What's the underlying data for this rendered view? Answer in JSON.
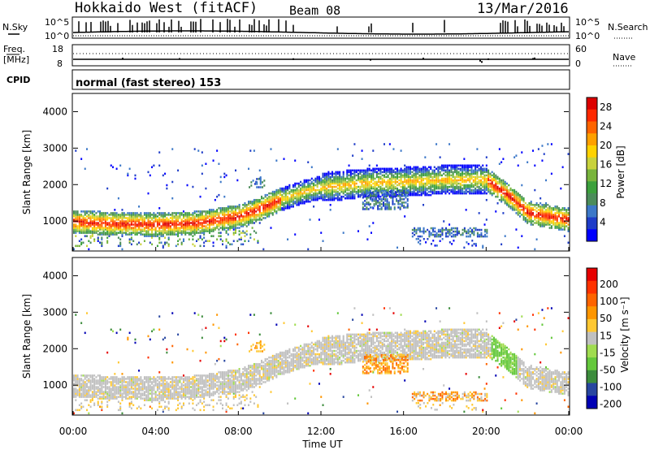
{
  "header": {
    "radar": "Hokkaido West (fitACF)",
    "beam": "Beam 08",
    "date": "13/Mar/2016"
  },
  "top_panels": {
    "nsky_label": "N.Sky",
    "nsearch_label": "N.Search",
    "noise_ticks": [
      "10^5",
      "10^0"
    ],
    "freq_label": "Freq.",
    "freq_unit": "[MHz]",
    "freq_ticks": [
      "18",
      "8"
    ],
    "nave_label": "Nave",
    "nave_ticks": [
      "60",
      "0"
    ],
    "cpid_label": "CPID",
    "cpid_text": "normal (fast stereo) 153"
  },
  "colors": {
    "power_scale": [
      "#0000ff",
      "#1e3cc8",
      "#3c78c8",
      "#4b8c5a",
      "#3ca03c",
      "#78b43c",
      "#c8d23c",
      "#ffd200",
      "#ffa000",
      "#ff6400",
      "#ff2800",
      "#dc0000"
    ],
    "velocity_scale": [
      "#0000b4",
      "#2846a0",
      "#3c8c3c",
      "#64c83c",
      "#a0dc50",
      "#c0c0c0",
      "#ffc832",
      "#ff9600",
      "#ff6400",
      "#ff3200",
      "#e60000"
    ]
  },
  "chart_data": [
    {
      "type": "heatmap",
      "title": "Power",
      "xlabel": "Time UT",
      "ylabel": "Slant Range [km]",
      "x_ticks": [
        "00:00",
        "04:00",
        "08:00",
        "12:00",
        "16:00",
        "20:00",
        "00:00"
      ],
      "xlim_hours": [
        0,
        24
      ],
      "y_ticks": [
        1000,
        2000,
        3000,
        4000
      ],
      "ylim": [
        180,
        4500
      ],
      "colorbar_label": "Power [dB]",
      "colorbar_ticks": [
        4,
        8,
        12,
        16,
        20,
        24,
        28
      ],
      "echo_band": {
        "time_hours": [
          0,
          2,
          4,
          6,
          8,
          9,
          10,
          11,
          12,
          13,
          14,
          16,
          18,
          19,
          20,
          21,
          22,
          24
        ],
        "range_km": [
          950,
          900,
          870,
          920,
          1100,
          1300,
          1550,
          1750,
          1900,
          1950,
          2000,
          2050,
          2100,
          2100,
          2100,
          1700,
          1200,
          1000
        ]
      }
    },
    {
      "type": "heatmap",
      "title": "Velocity",
      "xlabel": "Time UT",
      "ylabel": "Slant Range [km]",
      "x_ticks": [
        "00:00",
        "04:00",
        "08:00",
        "12:00",
        "16:00",
        "20:00",
        "00:00"
      ],
      "xlim_hours": [
        0,
        24
      ],
      "y_ticks": [
        1000,
        2000,
        3000,
        4000
      ],
      "ylim": [
        180,
        4500
      ],
      "colorbar_label": "Velocity [m s⁻¹]",
      "colorbar_ticks": [
        200,
        100,
        50,
        15,
        -15,
        -50,
        -100,
        -200
      ]
    }
  ]
}
